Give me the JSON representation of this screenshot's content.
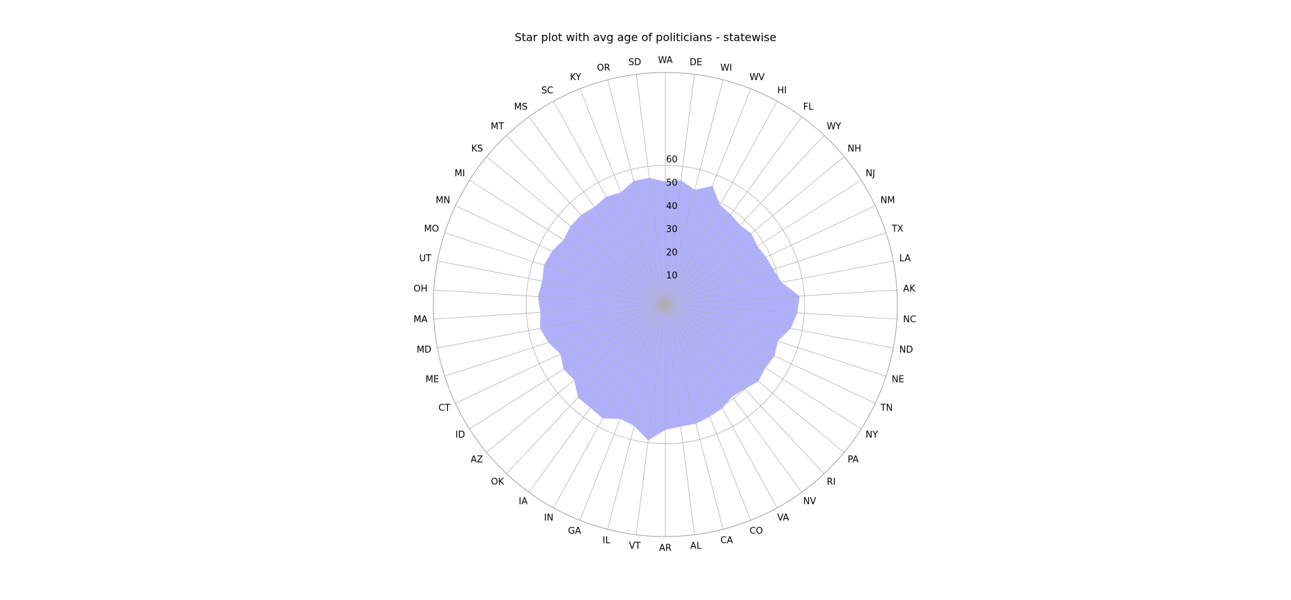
{
  "chart_data": {
    "type": "radar",
    "title": "Star plot with avg age of politicians - statewise",
    "categories": [
      "WA",
      "DE",
      "WI",
      "WV",
      "HI",
      "FL",
      "WY",
      "NH",
      "NJ",
      "NM",
      "TX",
      "LA",
      "AK",
      "NC",
      "ND",
      "NE",
      "TN",
      "NY",
      "PA",
      "RI",
      "NV",
      "VA",
      "CO",
      "CA",
      "AL",
      "AR",
      "VT",
      "IL",
      "GA",
      "IN",
      "IA",
      "OK",
      "AZ",
      "ID",
      "CT",
      "ME",
      "MD",
      "MA",
      "OH",
      "UT",
      "MO",
      "MN",
      "MI",
      "KS",
      "MT",
      "MS",
      "SC",
      "KY",
      "OR",
      "SD"
    ],
    "series": [
      {
        "values": [
          53,
          54,
          51,
          55,
          49,
          48,
          47,
          48,
          47,
          48,
          49,
          51,
          58,
          57,
          55,
          51,
          52,
          51,
          52,
          50,
          49,
          51,
          52,
          53,
          53,
          54,
          59,
          54,
          53,
          56,
          55,
          55,
          51,
          52,
          50,
          53,
          55,
          54,
          55,
          54,
          55,
          54,
          52,
          53,
          53,
          52,
          53,
          52,
          55,
          55
        ]
      }
    ],
    "rlim": [
      0,
      100
    ],
    "rticks": [
      10,
      20,
      30,
      40,
      50,
      60
    ],
    "rtick_labels": [
      "10",
      "20",
      "30",
      "40",
      "50",
      "60"
    ],
    "grid": true,
    "fill_color": "#b0b0fa",
    "grid_color": "#b0b0b0"
  }
}
